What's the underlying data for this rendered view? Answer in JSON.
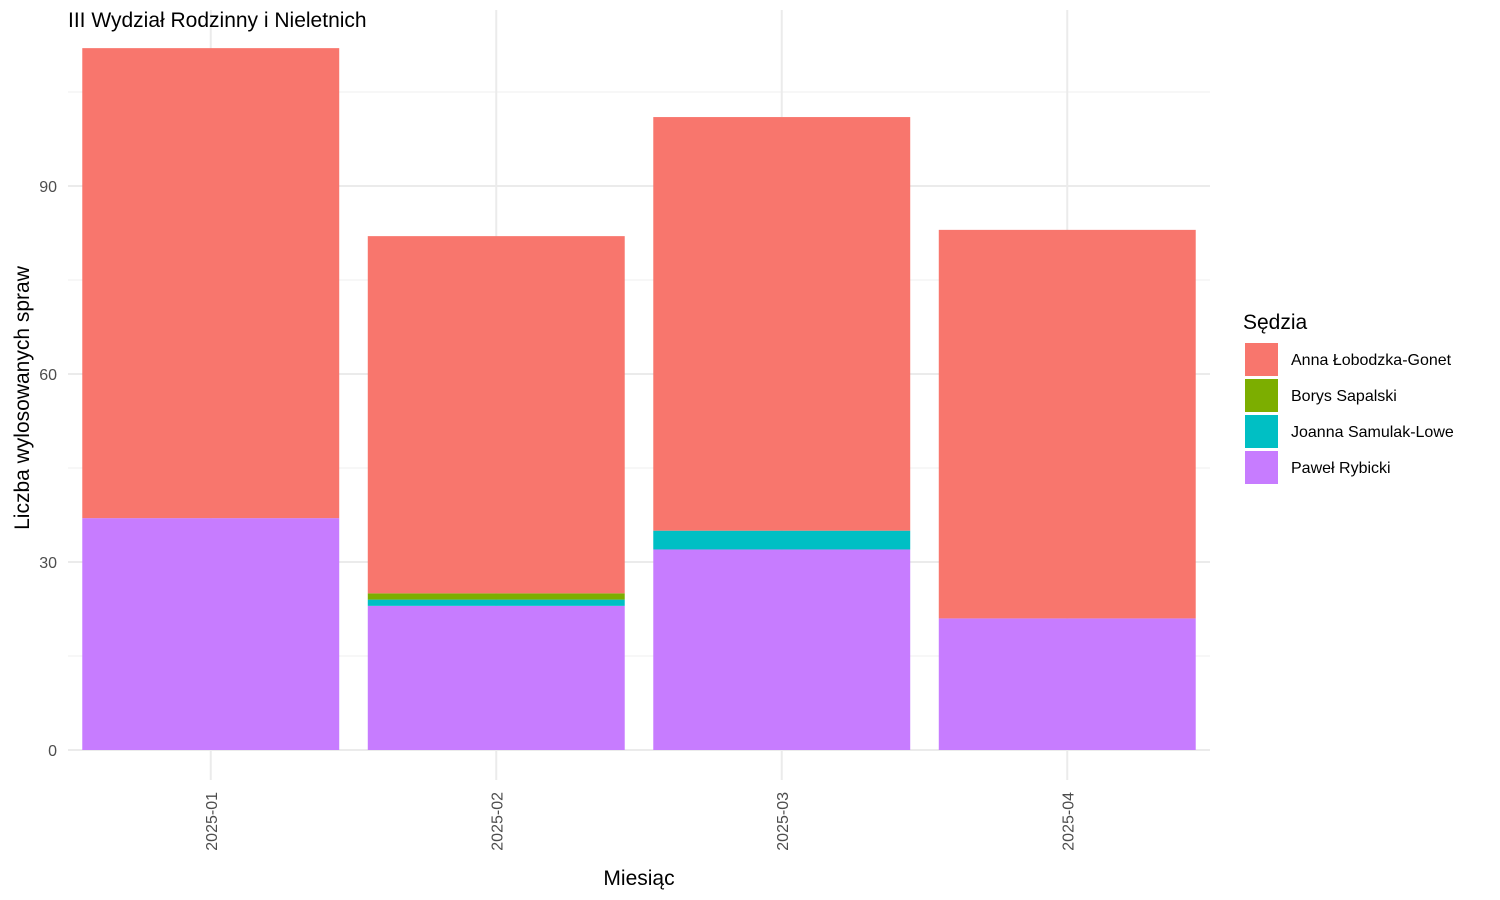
{
  "chart_data": {
    "type": "bar",
    "stacked": true,
    "title": "III Wydział Rodzinny i Nieletnich",
    "xlabel": "Miesiąc",
    "ylabel": "Liczba wylosowanych spraw",
    "categories": [
      "2025-01",
      "2025-02",
      "2025-03",
      "2025-04"
    ],
    "x_tick_rotation": "vertical",
    "ylim": [
      0,
      115
    ],
    "yticks": [
      0,
      30,
      60,
      90
    ],
    "grid": true,
    "legend": {
      "title": "Sędzia",
      "position": "right"
    },
    "series": [
      {
        "name": "Paweł Rybicki",
        "color": "#C77CFF",
        "values": [
          37,
          23,
          32,
          21
        ]
      },
      {
        "name": "Joanna Samulak-Lowe",
        "color": "#00BFC4",
        "values": [
          0,
          1,
          3,
          0
        ]
      },
      {
        "name": "Borys Sapalski",
        "color": "#7CAE00",
        "values": [
          0,
          1,
          0,
          0
        ]
      },
      {
        "name": "Anna Łobodzka-Gonet",
        "color": "#F8766D",
        "values": [
          75,
          57,
          66,
          62
        ]
      }
    ],
    "legend_order": [
      "Anna Łobodzka-Gonet",
      "Borys Sapalski",
      "Joanna Samulak-Lowe",
      "Paweł Rybicki"
    ]
  }
}
